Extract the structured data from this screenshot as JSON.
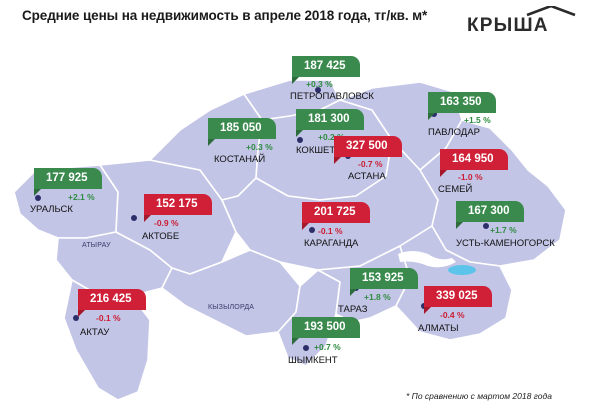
{
  "title": "Средние цены на недвижимость в апреле 2018 года, тг/кв. м*",
  "logo": "КРЫША",
  "footnote": "* По сравнению с мартом 2018 года",
  "colors": {
    "map": "#c3c5e6",
    "border": "#ffffff",
    "up": "#3a8a4e",
    "down": "#cf2037"
  },
  "regions": [
    "АТЫРАУ",
    "КЫЗЫЛОРДА"
  ],
  "cities": [
    {
      "name": "ПЕТРОПАВЛОВСК",
      "price": "187 425",
      "change": "+0.3 %",
      "trend": "up"
    },
    {
      "name": "ПАВЛОДАР",
      "price": "163 350",
      "change": "+1.5 %",
      "trend": "up"
    },
    {
      "name": "КОСТАНАЙ",
      "price": "185 050",
      "change": "+0.3 %",
      "trend": "up"
    },
    {
      "name": "КОКШЕТАУ",
      "price": "181 300",
      "change": "+0.2 %",
      "trend": "up"
    },
    {
      "name": "АСТАНА",
      "price": "327 500",
      "change": "-0.7 %",
      "trend": "down"
    },
    {
      "name": "СЕМЕЙ",
      "price": "164 950",
      "change": "-1.0 %",
      "trend": "down"
    },
    {
      "name": "УРАЛЬСК",
      "price": "177 925",
      "change": "+2.1 %",
      "trend": "up"
    },
    {
      "name": "АКТОБЕ",
      "price": "152 175",
      "change": "-0.9 %",
      "trend": "down"
    },
    {
      "name": "КАРАГАНДА",
      "price": "201 725",
      "change": "-0.1 %",
      "trend": "down"
    },
    {
      "name": "УСТЬ-КАМЕНОГОРСК",
      "price": "167 300",
      "change": "+1.7 %",
      "trend": "up"
    },
    {
      "name": "ТАРАЗ",
      "price": "153 925",
      "change": "+1.8 %",
      "trend": "up"
    },
    {
      "name": "АЛМАТЫ",
      "price": "339 025",
      "change": "-0.4 %",
      "trend": "down"
    },
    {
      "name": "АКТАУ",
      "price": "216 425",
      "change": "-0.1 %",
      "trend": "down"
    },
    {
      "name": "ШЫМКЕНТ",
      "price": "193 500",
      "change": "+0.7 %",
      "trend": "up"
    }
  ]
}
